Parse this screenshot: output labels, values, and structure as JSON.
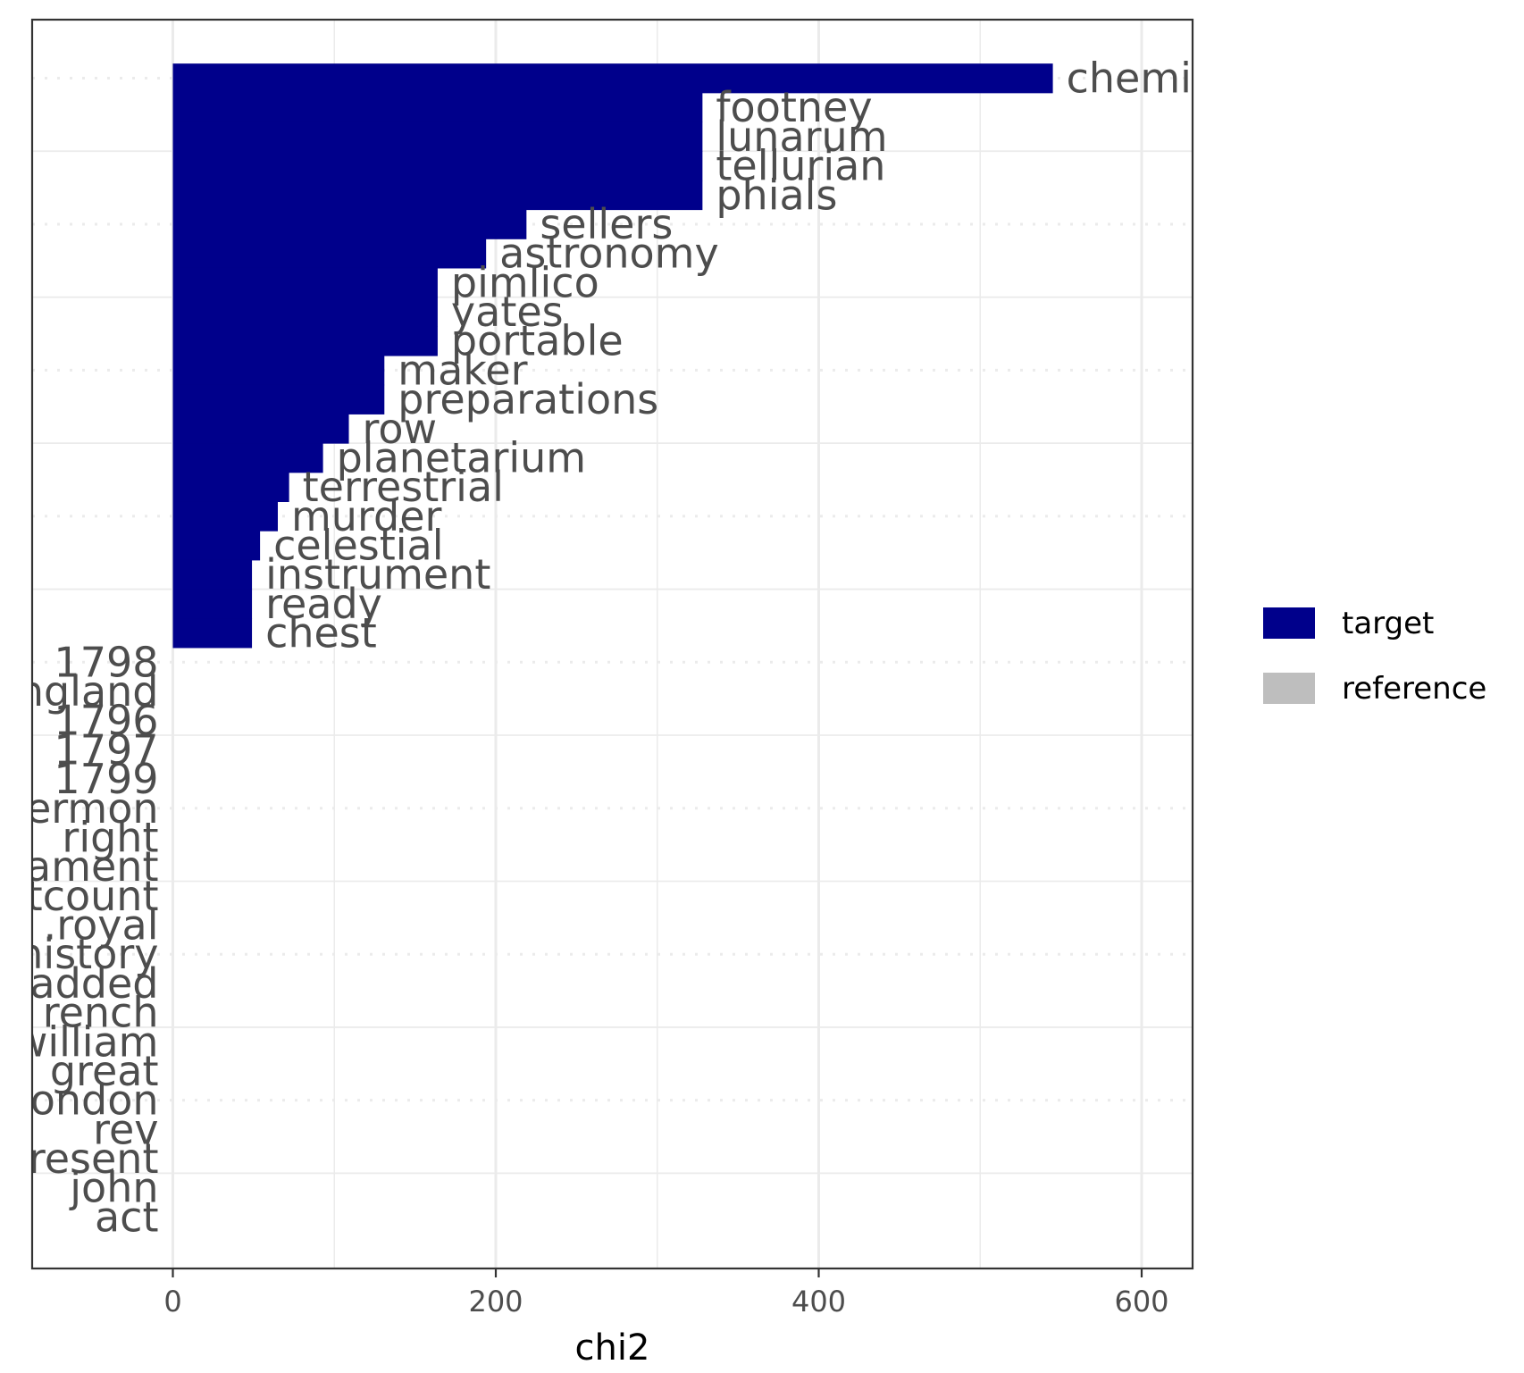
{
  "chart_data": {
    "type": "bar",
    "orientation": "horizontal",
    "xlabel": "chi2",
    "ylabel": "",
    "xlim": [
      -87,
      630
    ],
    "x_ticks": [
      0,
      200,
      400,
      600
    ],
    "grid": true,
    "legend_position": "right",
    "colors": {
      "target": "#00008b",
      "reference": "#bebebe"
    },
    "legend": [
      {
        "key": "target",
        "label": "target"
      },
      {
        "key": "reference",
        "label": "reference"
      }
    ],
    "bars": [
      {
        "label": "chemi",
        "value": 545,
        "group": "target"
      },
      {
        "label": "footney",
        "value": 328,
        "group": "target"
      },
      {
        "label": "lunarum",
        "value": 328,
        "group": "target"
      },
      {
        "label": "tellurian",
        "value": 328,
        "group": "target"
      },
      {
        "label": "phials",
        "value": 328,
        "group": "target"
      },
      {
        "label": "sellers",
        "value": 219,
        "group": "target"
      },
      {
        "label": "astronomy",
        "value": 194,
        "group": "target"
      },
      {
        "label": "pimlico",
        "value": 164,
        "group": "target"
      },
      {
        "label": "yates",
        "value": 164,
        "group": "target"
      },
      {
        "label": "portable",
        "value": 164,
        "group": "target"
      },
      {
        "label": "maker",
        "value": 131,
        "group": "target"
      },
      {
        "label": "preparations",
        "value": 131,
        "group": "target"
      },
      {
        "label": "row",
        "value": 109,
        "group": "target"
      },
      {
        "label": "planetarium",
        "value": 93,
        "group": "target"
      },
      {
        "label": "terrestrial",
        "value": 72,
        "group": "target"
      },
      {
        "label": "murder",
        "value": 65,
        "group": "target"
      },
      {
        "label": "celestial",
        "value": 54,
        "group": "target"
      },
      {
        "label": "instrument",
        "value": 49,
        "group": "target"
      },
      {
        "label": "ready",
        "value": 49,
        "group": "target"
      },
      {
        "label": "chest",
        "value": 49,
        "group": "target"
      },
      {
        "label": "1798",
        "value": 0,
        "group": "reference"
      },
      {
        "label": "ngland",
        "value": 0,
        "group": "reference"
      },
      {
        "label": "1796",
        "value": 0,
        "group": "reference"
      },
      {
        "label": "1797",
        "value": 0,
        "group": "reference"
      },
      {
        "label": "1799",
        "value": 0,
        "group": "reference"
      },
      {
        "label": "ermon",
        "value": 0,
        "group": "reference"
      },
      {
        "label": "right",
        "value": 0,
        "group": "reference"
      },
      {
        "label": "ament",
        "value": 0,
        "group": "reference"
      },
      {
        "label": "tcount",
        "value": 0,
        "group": "reference"
      },
      {
        "label": ".royal",
        "value": 0,
        "group": "reference"
      },
      {
        "label": "history",
        "value": 0,
        "group": "reference"
      },
      {
        "label": "added",
        "value": 0,
        "group": "reference"
      },
      {
        "label": "rench",
        "value": 0,
        "group": "reference"
      },
      {
        "label": "william",
        "value": 0,
        "group": "reference"
      },
      {
        "label": "great",
        "value": 0,
        "group": "reference"
      },
      {
        "label": "ondon",
        "value": 0,
        "group": "reference"
      },
      {
        "label": "rev",
        "value": 0,
        "group": "reference"
      },
      {
        "label": "resent",
        "value": 0,
        "group": "reference"
      },
      {
        "label": "john",
        "value": 0,
        "group": "reference"
      },
      {
        "label": "act",
        "value": 0,
        "group": "reference"
      }
    ]
  }
}
